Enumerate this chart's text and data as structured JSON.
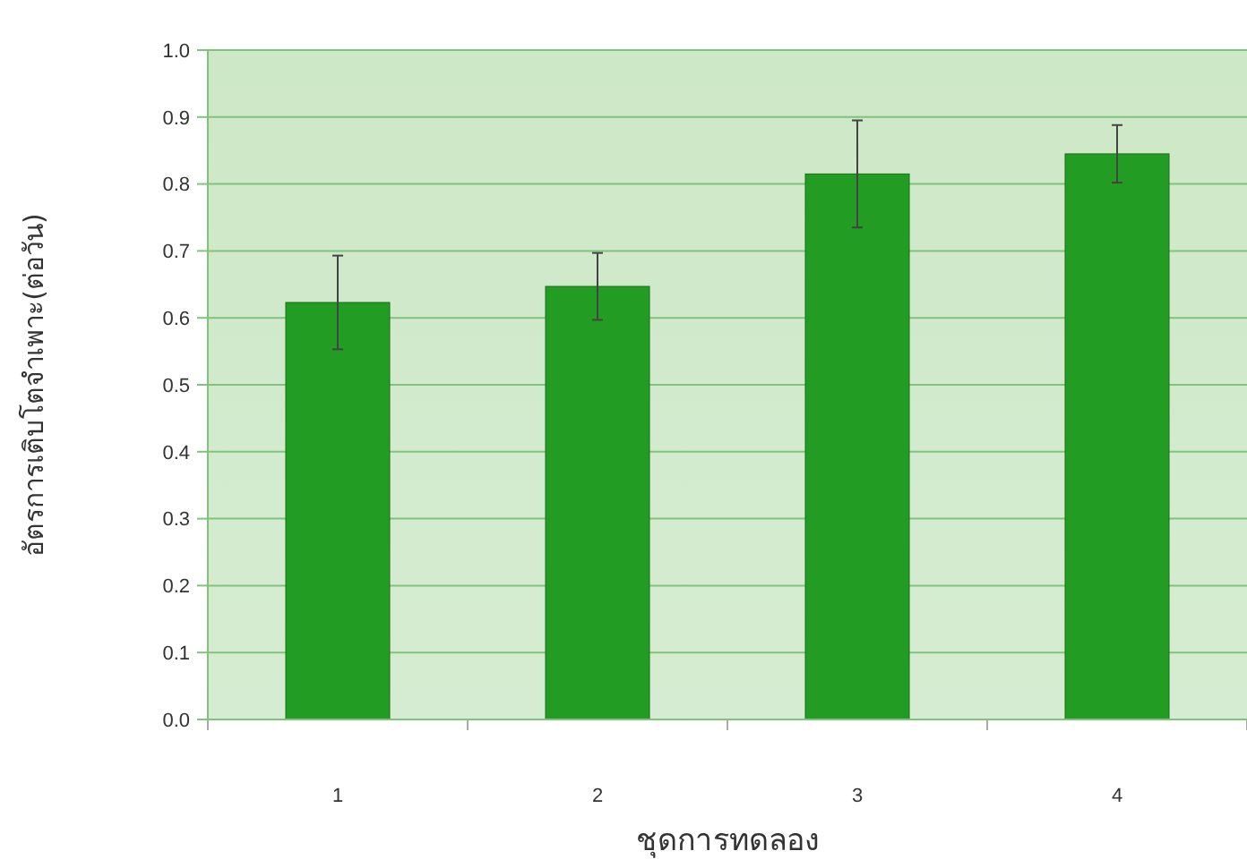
{
  "chart_data": {
    "type": "bar",
    "xlabel": "ชุดการทดลอง",
    "ylabel": "อัตรการเติบโตจำเพาะ(ต่อวัน)",
    "categories": [
      "1",
      "2",
      "3",
      "4"
    ],
    "values": [
      0.623,
      0.647,
      0.815,
      0.845
    ],
    "errors": [
      0.07,
      0.05,
      0.08,
      0.043
    ],
    "color": "#239c23",
    "ylim": [
      0,
      1
    ],
    "yticks": [
      {
        "value": 0,
        "label": "0.0"
      },
      {
        "value": 0.1,
        "label": "0.1"
      },
      {
        "value": 0.2,
        "label": "0.2"
      },
      {
        "value": 0.3,
        "label": "0.3"
      },
      {
        "value": 0.4,
        "label": "0.4"
      },
      {
        "value": 0.5,
        "label": "0.5"
      },
      {
        "value": 0.6,
        "label": "0.6"
      },
      {
        "value": 0.7,
        "label": "0.7"
      },
      {
        "value": 0.8,
        "label": "0.8"
      },
      {
        "value": 0.9,
        "label": "0.9"
      },
      {
        "value": 1,
        "label": "1.0"
      }
    ],
    "grid": "y"
  }
}
